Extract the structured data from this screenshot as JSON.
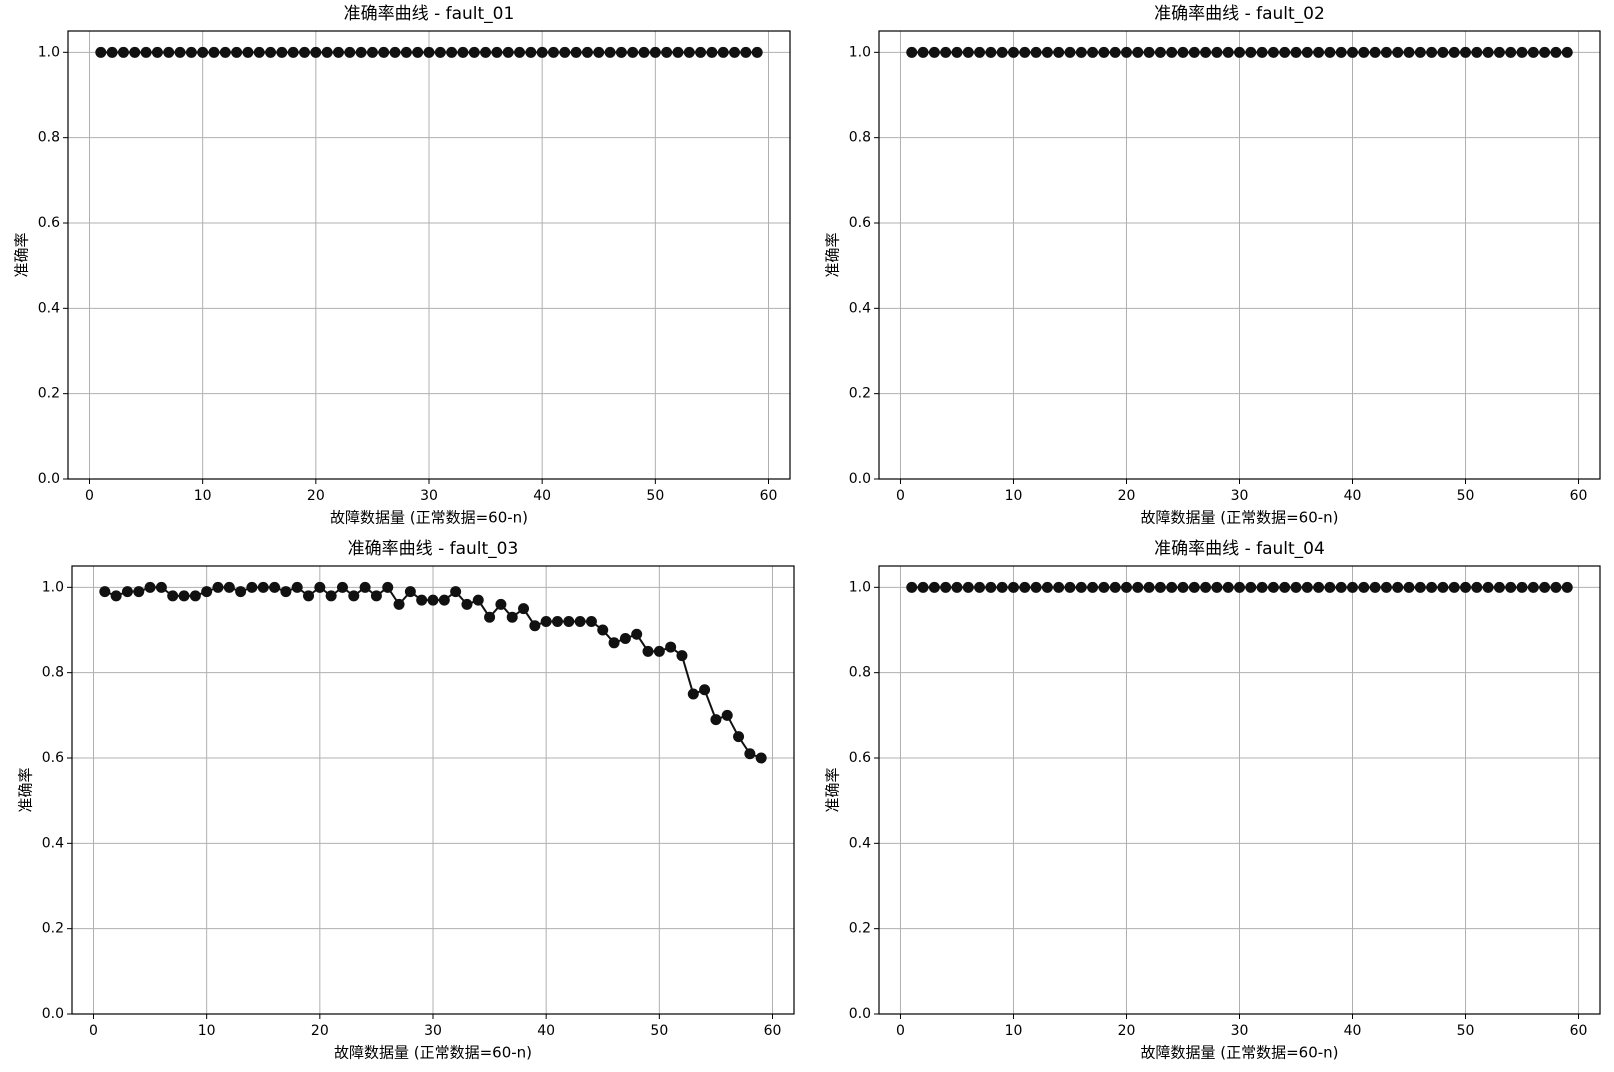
{
  "chart_data": [
    {
      "type": "line",
      "title": "准确率曲线 - fault_01",
      "xlabel": "故障数据量 (正常数据=60-n)",
      "ylabel": "准确率",
      "x": [
        1,
        2,
        3,
        4,
        5,
        6,
        7,
        8,
        9,
        10,
        11,
        12,
        13,
        14,
        15,
        16,
        17,
        18,
        19,
        20,
        21,
        22,
        23,
        24,
        25,
        26,
        27,
        28,
        29,
        30,
        31,
        32,
        33,
        34,
        35,
        36,
        37,
        38,
        39,
        40,
        41,
        42,
        43,
        44,
        45,
        46,
        47,
        48,
        49,
        50,
        51,
        52,
        53,
        54,
        55,
        56,
        57,
        58,
        59
      ],
      "values": [
        1,
        1,
        1,
        1,
        1,
        1,
        1,
        1,
        1,
        1,
        1,
        1,
        1,
        1,
        1,
        1,
        1,
        1,
        1,
        1,
        1,
        1,
        1,
        1,
        1,
        1,
        1,
        1,
        1,
        1,
        1,
        1,
        1,
        1,
        1,
        1,
        1,
        1,
        1,
        1,
        1,
        1,
        1,
        1,
        1,
        1,
        1,
        1,
        1,
        1,
        1,
        1,
        1,
        1,
        1,
        1,
        1,
        1,
        1
      ],
      "color": "#111111",
      "xlim": [
        -1.9,
        61.9
      ],
      "ylim": [
        0,
        1.05
      ],
      "xticks": [
        0,
        10,
        20,
        30,
        40,
        50,
        60
      ],
      "yticks": [
        {
          "value": 0,
          "label": "0.0"
        },
        0.2,
        0.4,
        0.6,
        0.8,
        {
          "value": 1,
          "label": "1.0"
        }
      ],
      "grid": true
    },
    {
      "type": "line",
      "title": "准确率曲线 - fault_02",
      "xlabel": "故障数据量 (正常数据=60-n)",
      "ylabel": "准确率",
      "x": [
        1,
        2,
        3,
        4,
        5,
        6,
        7,
        8,
        9,
        10,
        11,
        12,
        13,
        14,
        15,
        16,
        17,
        18,
        19,
        20,
        21,
        22,
        23,
        24,
        25,
        26,
        27,
        28,
        29,
        30,
        31,
        32,
        33,
        34,
        35,
        36,
        37,
        38,
        39,
        40,
        41,
        42,
        43,
        44,
        45,
        46,
        47,
        48,
        49,
        50,
        51,
        52,
        53,
        54,
        55,
        56,
        57,
        58,
        59
      ],
      "values": [
        1,
        1,
        1,
        1,
        1,
        1,
        1,
        1,
        1,
        1,
        1,
        1,
        1,
        1,
        1,
        1,
        1,
        1,
        1,
        1,
        1,
        1,
        1,
        1,
        1,
        1,
        1,
        1,
        1,
        1,
        1,
        1,
        1,
        1,
        1,
        1,
        1,
        1,
        1,
        1,
        1,
        1,
        1,
        1,
        1,
        1,
        1,
        1,
        1,
        1,
        1,
        1,
        1,
        1,
        1,
        1,
        1,
        1,
        1
      ],
      "color": "#111111",
      "xlim": [
        -1.9,
        61.9
      ],
      "ylim": [
        0,
        1.05
      ],
      "xticks": [
        0,
        10,
        20,
        30,
        40,
        50,
        60
      ],
      "yticks": [
        {
          "value": 0,
          "label": "0.0"
        },
        0.2,
        0.4,
        0.6,
        0.8,
        {
          "value": 1,
          "label": "1.0"
        }
      ],
      "grid": true
    },
    {
      "type": "line",
      "title": "准确率曲线 - fault_03",
      "xlabel": "故障数据量 (正常数据=60-n)",
      "ylabel": "准确率",
      "x": [
        1,
        2,
        3,
        4,
        5,
        6,
        7,
        8,
        9,
        10,
        11,
        12,
        13,
        14,
        15,
        16,
        17,
        18,
        19,
        20,
        21,
        22,
        23,
        24,
        25,
        26,
        27,
        28,
        29,
        30,
        31,
        32,
        33,
        34,
        35,
        36,
        37,
        38,
        39,
        40,
        41,
        42,
        43,
        44,
        45,
        46,
        47,
        48,
        49,
        50,
        51,
        52,
        53,
        54,
        55,
        56,
        57,
        58,
        59
      ],
      "values": [
        0.99,
        0.98,
        0.99,
        0.99,
        1.0,
        1.0,
        0.98,
        0.98,
        0.98,
        0.99,
        1.0,
        1.0,
        0.99,
        1.0,
        1.0,
        1.0,
        0.99,
        1.0,
        0.98,
        1.0,
        0.98,
        1.0,
        0.98,
        1.0,
        0.98,
        1.0,
        0.96,
        0.99,
        0.97,
        0.97,
        0.97,
        0.99,
        0.96,
        0.97,
        0.93,
        0.96,
        0.93,
        0.95,
        0.91,
        0.92,
        0.92,
        0.92,
        0.92,
        0.92,
        0.9,
        0.87,
        0.88,
        0.89,
        0.85,
        0.85,
        0.86,
        0.84,
        0.75,
        0.76,
        0.69,
        0.7,
        0.65,
        0.61,
        0.6
      ],
      "color": "#111111",
      "xlim": [
        -1.9,
        61.9
      ],
      "ylim": [
        0,
        1.05
      ],
      "xticks": [
        0,
        10,
        20,
        30,
        40,
        50,
        60
      ],
      "yticks": [
        {
          "value": 0,
          "label": "0.0"
        },
        0.2,
        0.4,
        0.6,
        0.8,
        {
          "value": 1,
          "label": "1.0"
        }
      ],
      "grid": true
    },
    {
      "type": "line",
      "title": "准确率曲线 - fault_04",
      "xlabel": "故障数据量 (正常数据=60-n)",
      "ylabel": "准确率",
      "x": [
        1,
        2,
        3,
        4,
        5,
        6,
        7,
        8,
        9,
        10,
        11,
        12,
        13,
        14,
        15,
        16,
        17,
        18,
        19,
        20,
        21,
        22,
        23,
        24,
        25,
        26,
        27,
        28,
        29,
        30,
        31,
        32,
        33,
        34,
        35,
        36,
        37,
        38,
        39,
        40,
        41,
        42,
        43,
        44,
        45,
        46,
        47,
        48,
        49,
        50,
        51,
        52,
        53,
        54,
        55,
        56,
        57,
        58,
        59
      ],
      "values": [
        1,
        1,
        1,
        1,
        1,
        1,
        1,
        1,
        1,
        1,
        1,
        1,
        1,
        1,
        1,
        1,
        1,
        1,
        1,
        1,
        1,
        1,
        1,
        1,
        1,
        1,
        1,
        1,
        1,
        1,
        1,
        1,
        1,
        1,
        1,
        1,
        1,
        1,
        1,
        1,
        1,
        1,
        1,
        1,
        1,
        1,
        1,
        1,
        1,
        1,
        1,
        1,
        1,
        1,
        1,
        1,
        1,
        1,
        1
      ],
      "color": "#111111",
      "xlim": [
        -1.9,
        61.9
      ],
      "ylim": [
        0,
        1.05
      ],
      "xticks": [
        0,
        10,
        20,
        30,
        40,
        50,
        60
      ],
      "yticks": [
        {
          "value": 0,
          "label": "0.0"
        },
        0.2,
        0.4,
        0.6,
        0.8,
        {
          "value": 1,
          "label": "1.0"
        }
      ],
      "grid": true
    }
  ]
}
